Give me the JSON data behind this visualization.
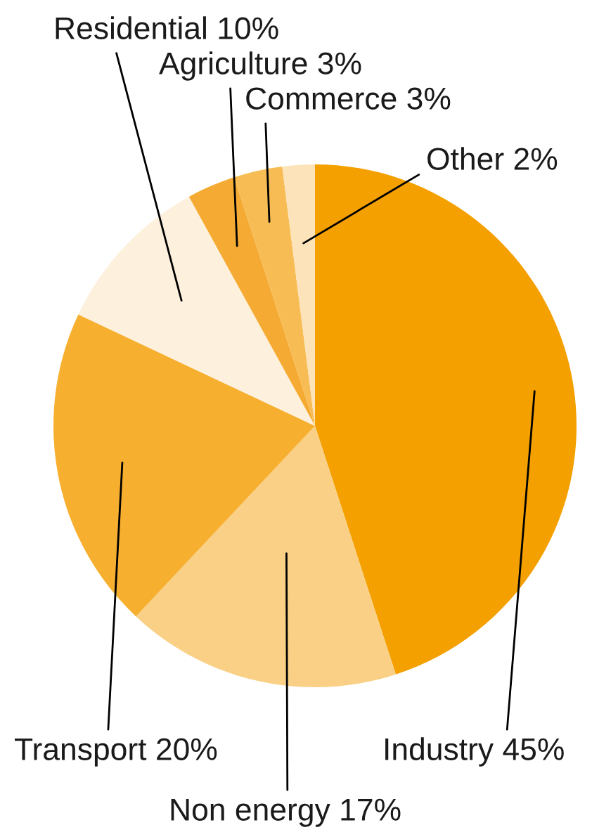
{
  "chart_data": {
    "type": "pie",
    "categories": [
      "Industry 45%",
      "Non energy 17%",
      "Transport 20%",
      "Residential 10%",
      "Agriculture 3%",
      "Commerce 3%",
      "Other 2%"
    ],
    "values": [
      45,
      17,
      20,
      10,
      3,
      3,
      2
    ],
    "colors": [
      "#f4a000",
      "#f9d086",
      "#f7af2f",
      "#fdf0dd",
      "#f5ab33",
      "#f8bc55",
      "#fce3b9"
    ]
  }
}
